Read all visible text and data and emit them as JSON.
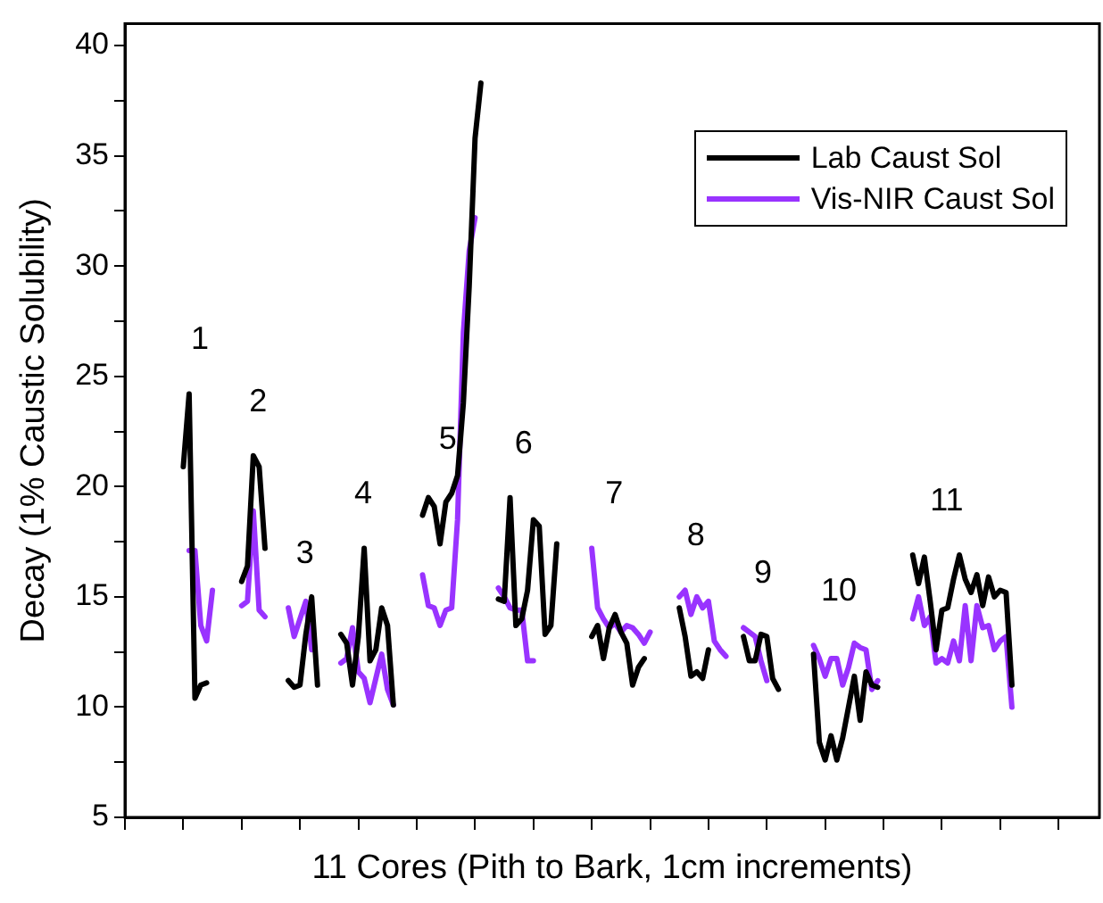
{
  "chart_data": {
    "type": "line",
    "xlabel": "11 Cores (Pith to Bark, 1cm increments)",
    "ylabel": "Decay (1% Caustic Solubility)",
    "categories": [
      null,
      null,
      null,
      null,
      null,
      null,
      null,
      null,
      null,
      null,
      null,
      null,
      null,
      null,
      null,
      null,
      null,
      null,
      null,
      null,
      null,
      null,
      null,
      null,
      null,
      null,
      null,
      null,
      null,
      null,
      null,
      null,
      null,
      null,
      null,
      null,
      null,
      null,
      null,
      null,
      null,
      null,
      null,
      null,
      null,
      null,
      null,
      null,
      null,
      null,
      null,
      null,
      null,
      null,
      null,
      null,
      null,
      null,
      null,
      null,
      null,
      null,
      null,
      null,
      null,
      null,
      null,
      null,
      null,
      null,
      null,
      null,
      null,
      null,
      null,
      null,
      null,
      null,
      null,
      null,
      null,
      null,
      null,
      null,
      null,
      null,
      null,
      null,
      null,
      null,
      null,
      null,
      null,
      null,
      null,
      null,
      null,
      null,
      null,
      null,
      null,
      null,
      null,
      null,
      null,
      null,
      null,
      null,
      null,
      null,
      null,
      null,
      null,
      null,
      null,
      null,
      null,
      null,
      null,
      null,
      null,
      null,
      null,
      null,
      null,
      null,
      null,
      null,
      null,
      null,
      null,
      null,
      null,
      null,
      null,
      null,
      null,
      null,
      null,
      null,
      null,
      null,
      null,
      null,
      null,
      null,
      null,
      null,
      null,
      null,
      null,
      null,
      null,
      null,
      null,
      null,
      null,
      null,
      null,
      null,
      null,
      null,
      null,
      null,
      null,
      null,
      null,
      null
    ],
    "ylim": [
      5,
      41
    ],
    "yticks": [
      5,
      {
        "value": 7.5,
        "label": null
      },
      10,
      {
        "value": 12.5,
        "label": null
      },
      15,
      {
        "value": 17.5,
        "label": null
      },
      20,
      {
        "value": 22.5,
        "label": null
      },
      25,
      {
        "value": 27.5,
        "label": null
      },
      30,
      {
        "value": 32.5,
        "label": null
      },
      35,
      {
        "value": 37.5,
        "label": null
      },
      40
    ],
    "tick_labels": "y",
    "grid": false,
    "legend": "top right",
    "series": [
      {
        "name": "Lab Caust Sol",
        "color": "#000000",
        "values": [
          null,
          null,
          null,
          null,
          null,
          null,
          null,
          null,
          null,
          null,
          20.9,
          24.2,
          10.4,
          11.0,
          11.1,
          null,
          null,
          null,
          null,
          null,
          15.7,
          16.4,
          21.4,
          20.9,
          17.2,
          null,
          null,
          null,
          11.2,
          10.9,
          11.0,
          13.3,
          15.0,
          11.0,
          null,
          null,
          null,
          13.3,
          12.9,
          11.0,
          13.2,
          17.2,
          12.1,
          12.6,
          14.5,
          13.7,
          10.1,
          null,
          null,
          null,
          null,
          18.7,
          19.5,
          19.1,
          17.4,
          19.3,
          19.7,
          20.5,
          23.8,
          29.1,
          35.8,
          38.3,
          null,
          null,
          14.9,
          14.8,
          19.5,
          13.7,
          14.0,
          15.3,
          18.5,
          18.2,
          13.3,
          13.7,
          17.4,
          null,
          null,
          null,
          null,
          null,
          13.2,
          13.7,
          12.2,
          13.6,
          14.2,
          13.4,
          12.9,
          11.0,
          11.8,
          12.2,
          null,
          null,
          null,
          null,
          null,
          14.5,
          13.2,
          11.4,
          11.6,
          11.3,
          12.6,
          null,
          null,
          null,
          null,
          null,
          13.2,
          12.1,
          12.1,
          13.3,
          13.2,
          11.3,
          10.8,
          null,
          null,
          null,
          null,
          null,
          12.4,
          8.4,
          7.6,
          8.7,
          7.6,
          8.6,
          10.0,
          11.4,
          9.4,
          11.6,
          11.0,
          10.9,
          null,
          null,
          null,
          null,
          null,
          16.9,
          15.6,
          16.8,
          14.8,
          12.6,
          14.4,
          14.5,
          15.8,
          16.9,
          15.8,
          15.2,
          16.0,
          14.6,
          15.9,
          15.0,
          15.3,
          15.2,
          11.0,
          null,
          null,
          null,
          null,
          null,
          null,
          null,
          null,
          null,
          null,
          null,
          null,
          null,
          null,
          null
        ]
      },
      {
        "name": "Vis-NIR Caust Sol",
        "color": "#9933ff",
        "values": [
          null,
          null,
          null,
          null,
          null,
          null,
          null,
          null,
          null,
          null,
          null,
          17.1,
          17.1,
          13.7,
          13.0,
          15.3,
          null,
          null,
          null,
          null,
          14.6,
          14.8,
          18.9,
          14.4,
          14.1,
          null,
          null,
          null,
          14.5,
          13.2,
          14.0,
          14.8,
          12.6,
          null,
          null,
          null,
          null,
          12.0,
          12.2,
          13.6,
          11.6,
          11.3,
          10.2,
          11.3,
          12.4,
          10.8,
          10.1,
          null,
          null,
          null,
          null,
          16.0,
          14.6,
          14.5,
          13.7,
          14.4,
          14.5,
          18.5,
          27.0,
          30.7,
          32.2,
          null,
          null,
          null,
          15.4,
          15.0,
          14.5,
          14.4,
          14.4,
          12.1,
          12.1,
          null,
          null,
          null,
          null,
          null,
          null,
          null,
          null,
          null,
          17.2,
          14.5,
          14.0,
          13.6,
          13.8,
          13.4,
          13.7,
          13.6,
          13.3,
          12.9,
          13.4,
          null,
          null,
          null,
          null,
          15.0,
          15.3,
          14.2,
          15.0,
          14.5,
          14.8,
          13.0,
          12.6,
          12.3,
          null,
          null,
          13.6,
          13.4,
          13.2,
          12.1,
          11.2,
          null,
          null,
          null,
          null,
          null,
          null,
          null,
          12.8,
          12.2,
          11.4,
          12.2,
          12.2,
          11.0,
          11.8,
          12.9,
          12.7,
          12.6,
          10.8,
          11.2,
          null,
          null,
          null,
          null,
          null,
          14.0,
          15.0,
          13.7,
          14.1,
          12.0,
          12.2,
          12.0,
          13.0,
          12.1,
          14.6,
          12.1,
          14.6,
          13.6,
          13.7,
          12.6,
          13.0,
          13.2,
          10.0,
          null,
          null,
          null,
          null,
          null,
          null,
          null,
          null,
          null,
          null,
          null,
          null,
          null,
          null,
          null
        ]
      }
    ],
    "annotations": [
      "1",
      "2",
      "3",
      "4",
      "5",
      "6",
      "7",
      "8",
      "9",
      "10",
      "11"
    ]
  }
}
